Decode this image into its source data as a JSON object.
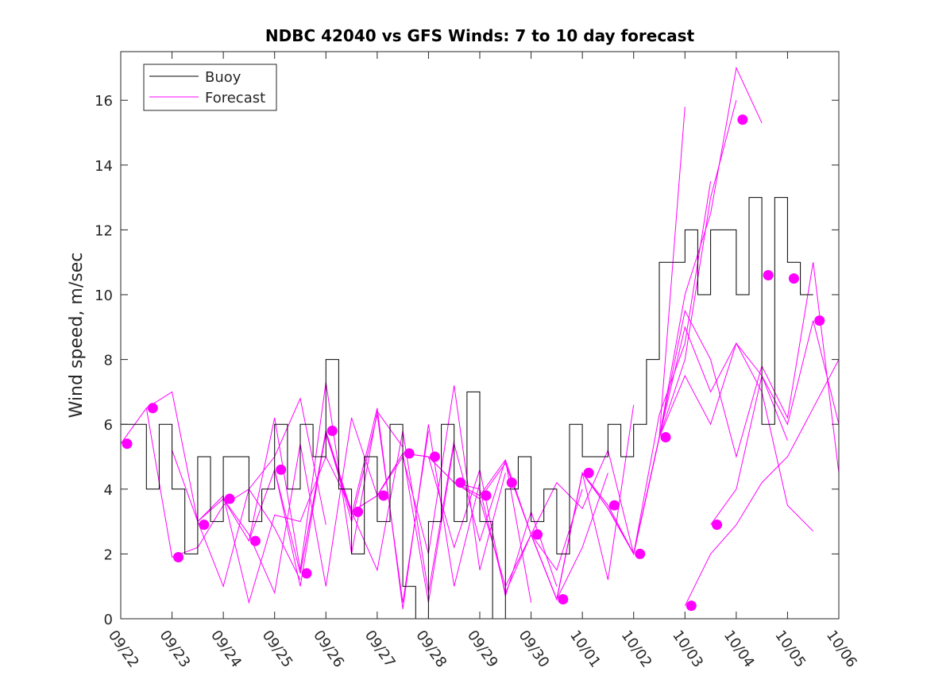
{
  "chart_data": {
    "type": "line",
    "title": "NDBC 42040 vs GFS Winds: 7 to 10 day forecast",
    "xlabel": "",
    "ylabel": "Wind speed, m/sec",
    "xlim": [
      0,
      14
    ],
    "ylim": [
      0,
      17.5
    ],
    "yticks": [
      0,
      2,
      4,
      6,
      8,
      10,
      12,
      14,
      16
    ],
    "xtick_labels": [
      "09/22",
      "09/23",
      "09/24",
      "09/25",
      "09/26",
      "09/27",
      "09/28",
      "09/29",
      "09/30",
      "10/01",
      "10/02",
      "10/03",
      "10/04",
      "10/05",
      "10/06"
    ],
    "colors": {
      "buoy": "#000000",
      "forecast": "#ff00ff"
    },
    "legend": {
      "position": "top-left",
      "entries": [
        "Buoy",
        "Forecast"
      ]
    },
    "buoy": {
      "name": "Buoy",
      "x": [
        0,
        0.25,
        0.5,
        0.75,
        1.0,
        1.25,
        1.5,
        1.75,
        2.0,
        2.25,
        2.5,
        2.75,
        3.0,
        3.25,
        3.5,
        3.75,
        4.0,
        4.25,
        4.5,
        4.75,
        5.0,
        5.25,
        5.5,
        5.75,
        6.0,
        6.25,
        6.5,
        6.75,
        7.0,
        7.25,
        7.5,
        7.75,
        8.0,
        8.25,
        8.5,
        8.75,
        9.0,
        9.25,
        9.5,
        9.75,
        10.0,
        10.25,
        10.5,
        10.75,
        11.0,
        11.25,
        11.5,
        11.75,
        12.0,
        12.25,
        12.5,
        12.75,
        13.0,
        13.25
      ],
      "values": [
        6,
        6,
        4,
        6,
        4,
        2,
        5,
        3,
        5,
        5,
        3,
        4,
        6,
        4,
        6,
        5,
        8,
        4,
        2,
        5,
        3,
        6,
        1,
        0,
        3,
        6,
        3,
        7,
        3,
        0,
        4,
        5,
        3,
        4,
        2,
        6,
        5,
        5,
        6,
        5,
        6,
        8,
        11,
        11,
        12,
        10,
        12,
        12,
        10,
        13,
        6,
        13,
        11,
        10
      ]
    },
    "forecast_series": [
      {
        "name": "Forecast",
        "x": [
          0,
          0.5,
          1.0,
          1.5,
          2.0,
          2.5,
          3.0,
          3.5
        ],
        "values": [
          5.4,
          6.5,
          7.0,
          3.0,
          1.0,
          4.0,
          2.8,
          1.2
        ]
      },
      {
        "name": "Forecast",
        "x": [
          0.5,
          1.0,
          1.5,
          2.0,
          2.5,
          3.0,
          3.5,
          4.0
        ],
        "values": [
          6.5,
          1.9,
          2.2,
          3.5,
          4.0,
          5.0,
          6.8,
          2.9
        ]
      },
      {
        "name": "Forecast",
        "x": [
          1.0,
          1.5,
          2.0,
          2.5,
          3.0,
          3.5,
          4.0,
          4.5
        ],
        "values": [
          5.2,
          3.0,
          3.8,
          0.5,
          3.2,
          3.0,
          5.0,
          3.4
        ]
      },
      {
        "name": "Forecast",
        "x": [
          1.5,
          2.0,
          2.5,
          3.0,
          3.5,
          4.0,
          4.5,
          5.0
        ],
        "values": [
          3.0,
          3.7,
          2.6,
          0.8,
          5.4,
          1.0,
          6.2,
          3.8
        ]
      },
      {
        "name": "Forecast",
        "x": [
          2.0,
          2.5,
          3.0,
          3.5,
          4.0,
          4.5,
          5.0,
          5.5
        ],
        "values": [
          3.7,
          2.4,
          6.2,
          1.5,
          7.3,
          2.0,
          6.4,
          5.3
        ]
      },
      {
        "name": "Forecast",
        "x": [
          2.5,
          3.0,
          3.5,
          4.0,
          4.5,
          5.0,
          5.5,
          6.0
        ],
        "values": [
          2.4,
          4.6,
          1.0,
          5.8,
          3.0,
          6.3,
          0.5,
          5.8
        ]
      },
      {
        "name": "Forecast",
        "x": [
          3.0,
          3.5,
          4.0,
          4.5,
          5.0,
          5.5,
          6.0,
          6.5
        ],
        "values": [
          4.6,
          1.4,
          5.8,
          3.3,
          1.5,
          5.8,
          0.8,
          5.5
        ]
      },
      {
        "name": "Forecast",
        "x": [
          3.5,
          4.0,
          4.5,
          5.0,
          5.5,
          6.0,
          6.5,
          7.0
        ],
        "values": [
          1.4,
          5.7,
          3.2,
          6.5,
          0.3,
          6.0,
          1.0,
          4.2
        ]
      },
      {
        "name": "Forecast",
        "x": [
          4.0,
          4.5,
          5.0,
          5.5,
          6.0,
          6.5,
          7.0,
          7.5
        ],
        "values": [
          5.7,
          3.3,
          3.8,
          5.0,
          2.0,
          7.2,
          1.5,
          4.5
        ]
      },
      {
        "name": "Forecast",
        "x": [
          4.5,
          5.0,
          5.5,
          6.0,
          6.5,
          7.0,
          7.5,
          8.0
        ],
        "values": [
          3.3,
          3.8,
          5.1,
          0.5,
          5.4,
          2.4,
          4.9,
          0.5
        ]
      },
      {
        "name": "Forecast",
        "x": [
          5.0,
          5.5,
          6.0,
          6.5,
          7.0,
          7.5,
          8.0,
          8.5
        ],
        "values": [
          3.8,
          5.1,
          5.0,
          2.2,
          4.6,
          0.7,
          3.3,
          1.0
        ]
      },
      {
        "name": "Forecast",
        "x": [
          5.5,
          6.0,
          6.5,
          7.0,
          7.5,
          8.0,
          8.5,
          9.0
        ],
        "values": [
          5.1,
          5.0,
          4.2,
          4.0,
          0.8,
          2.6,
          1.5,
          4.0
        ]
      },
      {
        "name": "Forecast",
        "x": [
          6.0,
          6.5,
          7.0,
          7.5,
          8.0,
          8.5,
          9.0,
          9.5
        ],
        "values": [
          5.0,
          4.2,
          3.8,
          4.9,
          2.6,
          0.6,
          2.2,
          4.5
        ]
      },
      {
        "name": "Forecast",
        "x": [
          6.5,
          7.0,
          7.5,
          8.0,
          8.5,
          9.0,
          9.5,
          10.0
        ],
        "values": [
          4.2,
          3.7,
          1.0,
          2.6,
          0.6,
          4.5,
          1.2,
          6.6
        ]
      },
      {
        "name": "Forecast",
        "x": [
          7.0,
          7.5,
          8.0,
          8.5,
          9.0,
          9.5,
          10.0,
          10.5
        ],
        "values": [
          3.7,
          4.8,
          2.6,
          4.2,
          3.4,
          5.2,
          2.0,
          5.6
        ]
      },
      {
        "name": "Forecast",
        "x": [
          7.5,
          8.0,
          8.5,
          9.0,
          9.5,
          10.0,
          10.5,
          11.0
        ],
        "values": [
          4.8,
          2.6,
          0.6,
          4.5,
          3.4,
          2.0,
          5.6,
          15.8
        ]
      },
      {
        "name": "Forecast",
        "x": [
          8.0,
          8.5,
          9.0,
          9.5,
          10.0,
          10.5,
          11.0,
          11.5
        ],
        "values": [
          2.6,
          0.6,
          4.5,
          3.5,
          2.0,
          6.3,
          8.5,
          13.5
        ]
      },
      {
        "name": "Forecast",
        "x": [
          8.5,
          9.0,
          9.5,
          10.0,
          10.5,
          11.0,
          11.5,
          12.0
        ],
        "values": [
          0.6,
          4.5,
          3.5,
          2.0,
          5.6,
          8.0,
          13.0,
          16.0
        ]
      },
      {
        "name": "Forecast",
        "x": [
          9.0,
          9.5,
          10.0,
          10.5,
          11.0,
          11.5,
          12.0,
          12.5
        ],
        "values": [
          4.5,
          3.4,
          2.0,
          5.6,
          10.0,
          12.5,
          17.0,
          15.3
        ]
      },
      {
        "name": "Forecast",
        "x": [
          9.5,
          10.0,
          10.5,
          11.0,
          11.5,
          12.0,
          12.5,
          13.0
        ],
        "values": [
          3.4,
          2.0,
          5.6,
          9.0,
          7.0,
          8.5,
          7.5,
          5.5
        ]
      },
      {
        "name": "Forecast",
        "x": [
          10.0,
          10.5,
          11.0,
          11.5,
          12.0,
          12.5,
          13.0,
          13.5
        ],
        "values": [
          2.0,
          5.6,
          7.5,
          6.0,
          8.5,
          7.0,
          3.5,
          2.7
        ]
      },
      {
        "name": "Forecast",
        "x": [
          10.5,
          11.0,
          11.5,
          12.0,
          12.5,
          13.0,
          13.5,
          14.0
        ],
        "values": [
          5.6,
          9.5,
          8.0,
          5.0,
          7.8,
          6.2,
          11.0,
          4.5
        ]
      },
      {
        "name": "Forecast",
        "x": [
          11.0,
          11.5,
          12.0,
          12.5,
          13.0,
          13.5,
          14.0
        ],
        "values": [
          0.4,
          2.0,
          2.9,
          4.2,
          5.0,
          6.5,
          8.0
        ]
      },
      {
        "name": "Forecast",
        "x": [
          11.5,
          12.0,
          12.5,
          13.0,
          13.5,
          14.0
        ],
        "values": [
          2.9,
          4.0,
          7.5,
          6.0,
          9.2,
          6.0
        ]
      }
    ],
    "forecast_points": {
      "x": [
        0,
        0.5,
        1.0,
        1.5,
        2.0,
        2.5,
        3.0,
        3.5,
        4.0,
        4.5,
        5.0,
        5.5,
        6.0,
        6.5,
        7.0,
        7.5,
        8.0,
        8.5,
        9.0,
        9.5,
        10.0,
        10.5,
        11.0,
        11.5,
        12.0,
        12.5,
        13.0,
        13.5
      ],
      "values": [
        5.4,
        6.5,
        1.9,
        2.9,
        3.7,
        2.4,
        4.6,
        1.4,
        5.8,
        3.3,
        3.8,
        5.1,
        5.0,
        4.2,
        3.8,
        4.2,
        2.6,
        0.6,
        4.5,
        3.5,
        2.0,
        5.6,
        0.4,
        2.9,
        15.4,
        10.6,
        10.5,
        9.2
      ]
    }
  }
}
